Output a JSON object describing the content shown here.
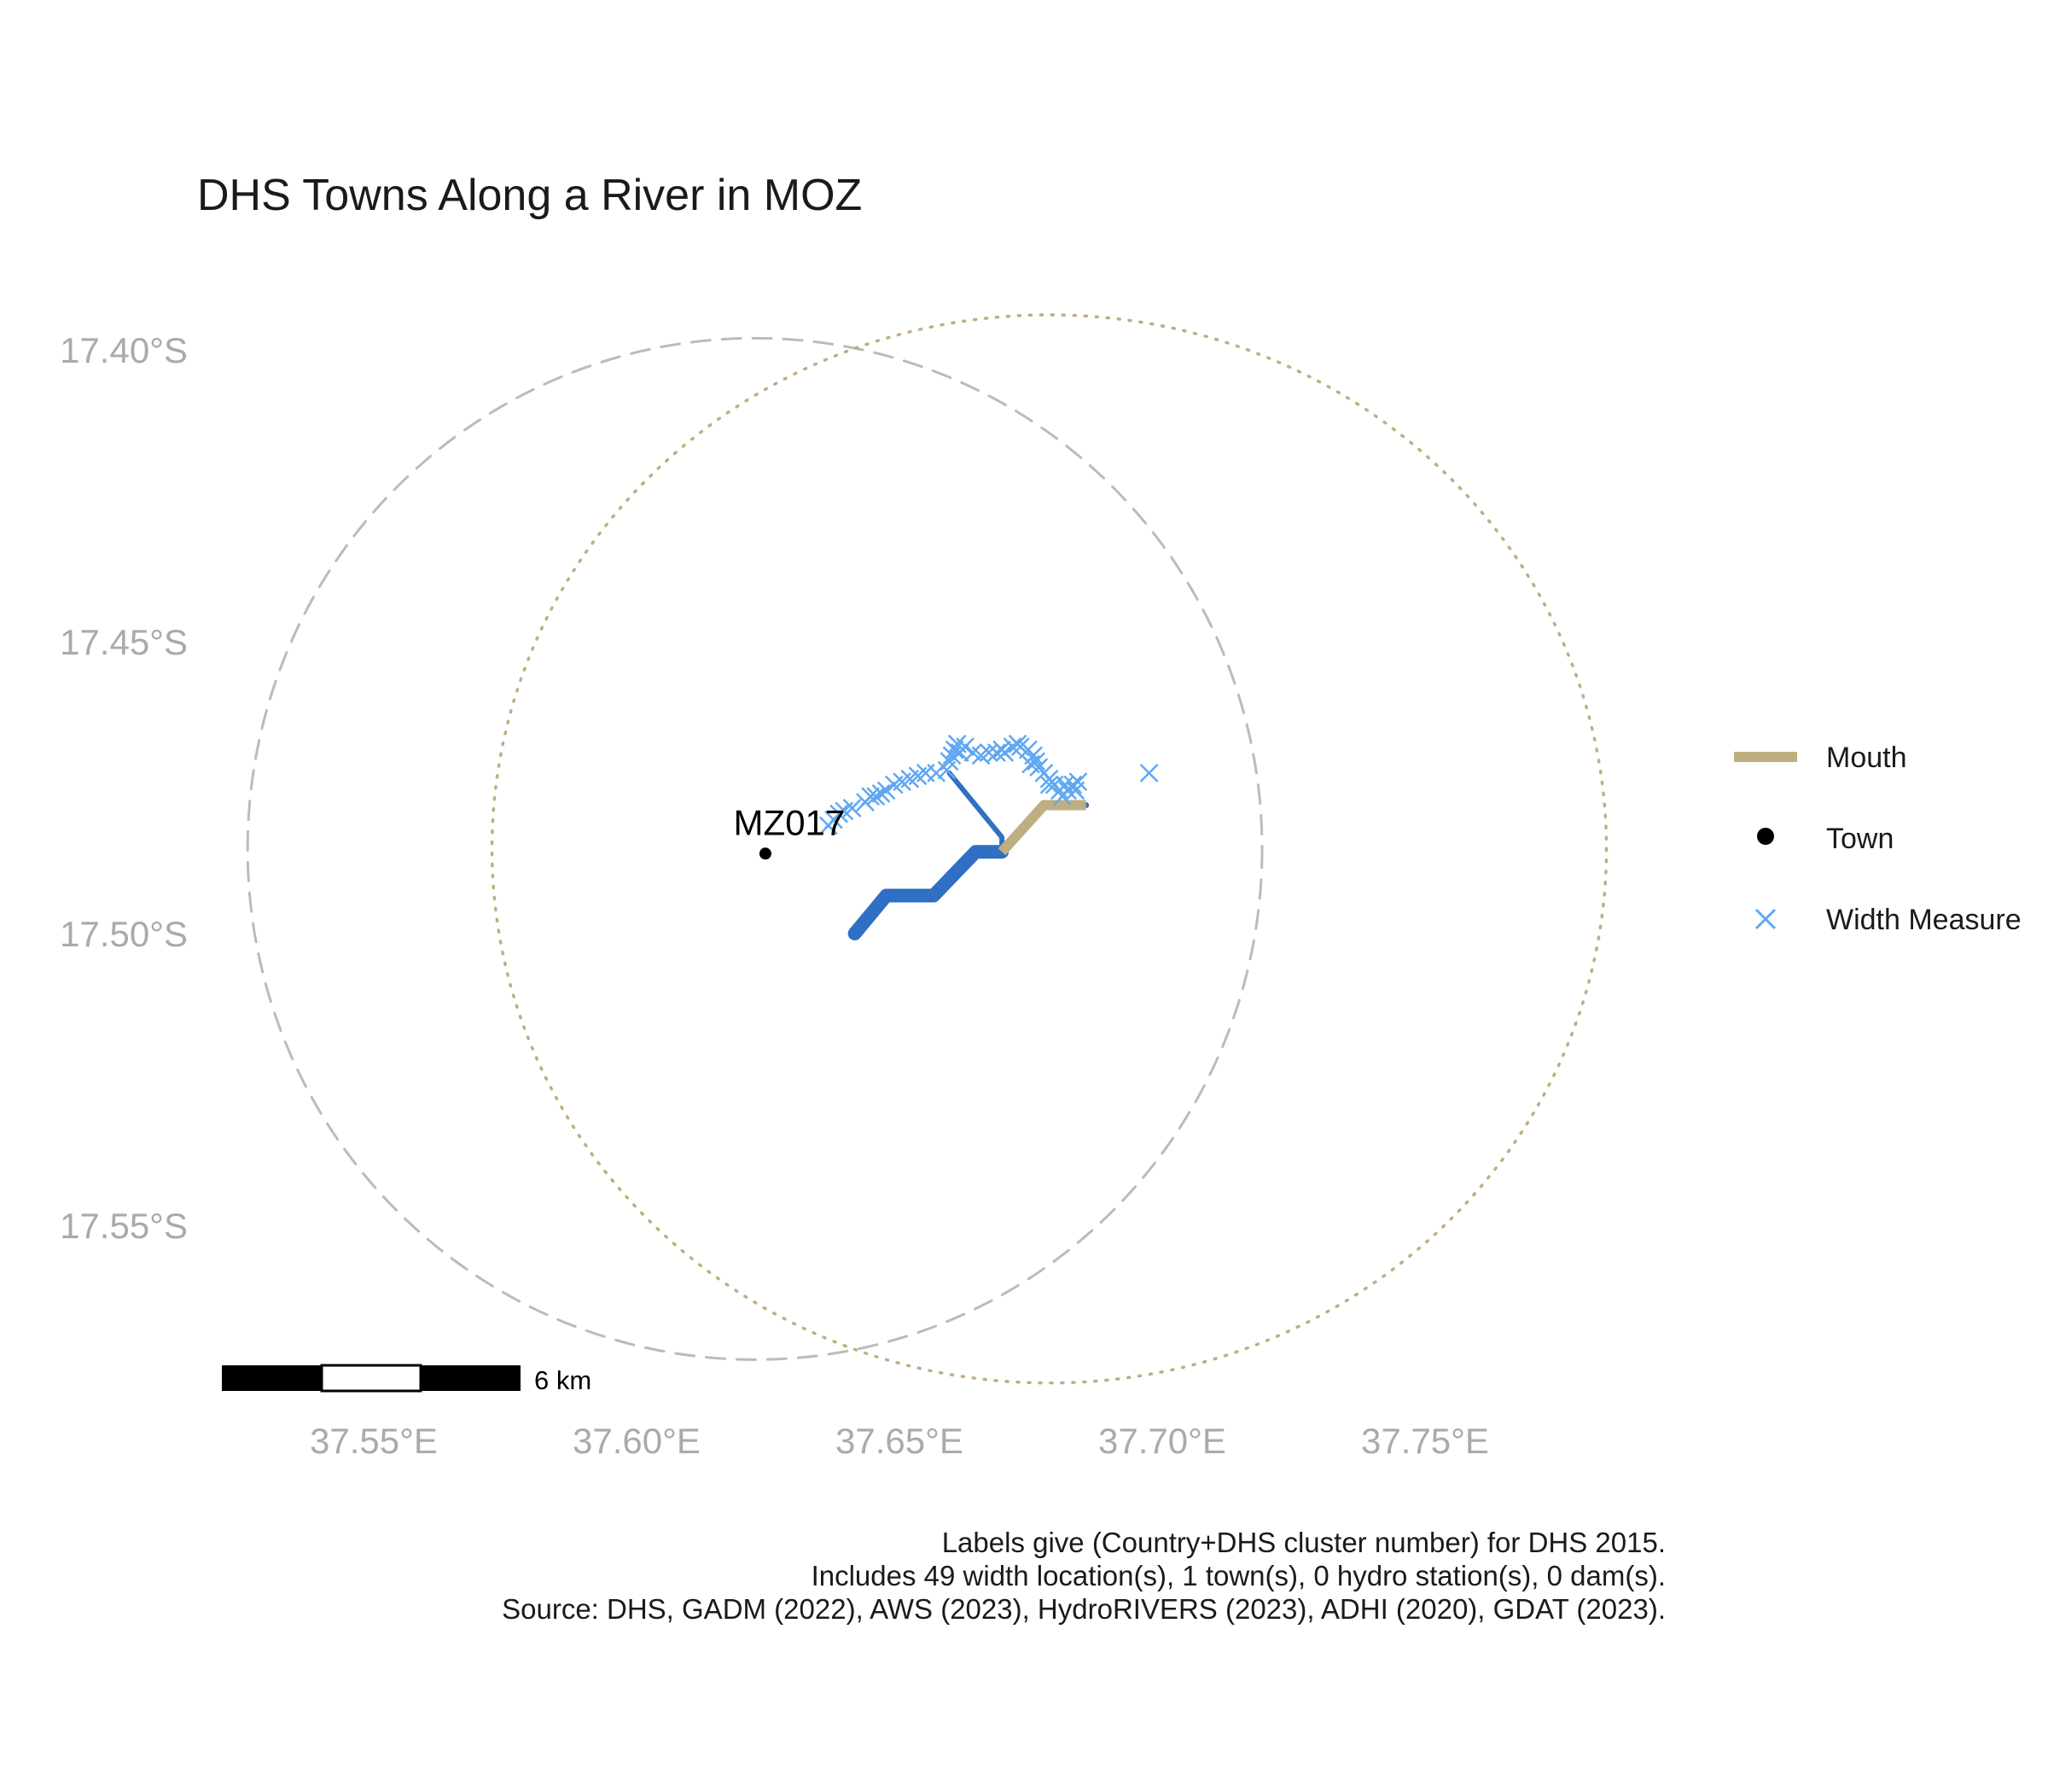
{
  "title": "DHS Towns Along a River in MOZ",
  "map": {
    "crs": "lon/lat",
    "lon_ticks": [
      37.55,
      37.6,
      37.65,
      37.7,
      37.75
    ],
    "lon_tick_labels": [
      "37.55°E",
      "37.60°E",
      "37.65°E",
      "37.70°E",
      "37.75°E"
    ],
    "lat_ticks": [
      -17.4,
      -17.45,
      -17.5,
      -17.55
    ],
    "lat_tick_labels": [
      "17.40°S",
      "17.45°S",
      "17.50°S",
      "17.55°S"
    ],
    "lon_range": [
      37.5175,
      37.835
    ],
    "lat_range": [
      -17.58,
      -17.38
    ],
    "colors": {
      "river": "#2f6fc4",
      "mouth": "#bfae82",
      "width_measure": "#5ea8f2",
      "town": "#000000",
      "buffer_dashed": "#bbbbbb",
      "buffer_dotted": "#bfae82"
    },
    "buffers": [
      {
        "style": "dashed",
        "center": [
          37.6225,
          -17.4855
        ],
        "radius_deg_lon": 0.0965,
        "radius_deg_lat": 0.0875
      },
      {
        "style": "dotted",
        "center": [
          37.6785,
          -17.4855
        ],
        "radius_deg_lon": 0.106,
        "radius_deg_lat": 0.0915
      }
    ],
    "river_segments": [
      {
        "width_class": "thick",
        "points": [
          [
            37.6415,
            -17.5
          ],
          [
            37.6475,
            -17.4935
          ],
          [
            37.6565,
            -17.4935
          ],
          [
            37.6645,
            -17.486
          ],
          [
            37.6695,
            -17.486
          ]
        ]
      },
      {
        "width_class": "thin",
        "points": [
          [
            37.6595,
            -17.4725
          ],
          [
            37.6695,
            -17.4835
          ],
          [
            37.6695,
            -17.486
          ]
        ]
      },
      {
        "width_class": "medium",
        "points": [
          [
            37.6695,
            -17.486
          ],
          [
            37.6775,
            -17.478
          ],
          [
            37.6855,
            -17.478
          ]
        ]
      }
    ],
    "mouth": {
      "points": [
        [
          37.6695,
          -17.486
        ],
        [
          37.6775,
          -17.478
        ],
        [
          37.6855,
          -17.478
        ]
      ]
    },
    "towns": [
      {
        "id": "MZ017",
        "lon": 37.6245,
        "lat": -17.4863
      }
    ],
    "width_measures": [
      [
        37.6375,
        -17.4805
      ],
      [
        37.6395,
        -17.479
      ],
      [
        37.641,
        -17.4785
      ],
      [
        37.6435,
        -17.4775
      ],
      [
        37.6455,
        -17.4765
      ],
      [
        37.6475,
        -17.4755
      ],
      [
        37.649,
        -17.4745
      ],
      [
        37.6505,
        -17.474
      ],
      [
        37.652,
        -17.4735
      ],
      [
        37.6535,
        -17.473
      ],
      [
        37.655,
        -17.4725
      ],
      [
        37.657,
        -17.4725
      ],
      [
        37.659,
        -17.472
      ],
      [
        37.6595,
        -17.4705
      ],
      [
        37.66,
        -17.4695
      ],
      [
        37.6605,
        -17.4685
      ],
      [
        37.661,
        -17.4675
      ],
      [
        37.6625,
        -17.468
      ],
      [
        37.664,
        -17.469
      ],
      [
        37.6655,
        -17.4695
      ],
      [
        37.667,
        -17.469
      ],
      [
        37.6685,
        -17.469
      ],
      [
        37.67,
        -17.469
      ],
      [
        37.6715,
        -17.468
      ],
      [
        37.673,
        -17.468
      ],
      [
        37.6745,
        -17.4685
      ],
      [
        37.6755,
        -17.4695
      ],
      [
        37.676,
        -17.4705
      ],
      [
        37.6765,
        -17.4715
      ],
      [
        37.6775,
        -17.4725
      ],
      [
        37.6785,
        -17.4735
      ],
      [
        37.6795,
        -17.4745
      ],
      [
        37.6805,
        -17.4755
      ],
      [
        37.681,
        -17.4765
      ],
      [
        37.682,
        -17.4755
      ],
      [
        37.683,
        -17.4745
      ],
      [
        37.684,
        -17.474
      ],
      [
        37.6975,
        -17.4725
      ],
      [
        37.6365,
        -17.4815
      ],
      [
        37.6385,
        -17.4795
      ],
      [
        37.6445,
        -17.4765
      ],
      [
        37.6465,
        -17.476
      ],
      [
        37.6615,
        -17.469
      ],
      [
        37.6695,
        -17.4685
      ],
      [
        37.6725,
        -17.4675
      ],
      [
        37.675,
        -17.471
      ],
      [
        37.6785,
        -17.4745
      ],
      [
        37.6815,
        -17.4745
      ],
      [
        37.6835,
        -17.4755
      ]
    ],
    "scale_bar": {
      "label": "6 km",
      "segments": 3
    }
  },
  "legend": [
    {
      "key": "Mouth",
      "label": "Mouth"
    },
    {
      "key": "Town",
      "label": "Town"
    },
    {
      "key": "Width Measure",
      "label": "Width Measure"
    }
  ],
  "caption": [
    "Labels give (Country+DHS cluster number) for DHS 2015.",
    "Includes 49 width location(s), 1 town(s), 0 hydro station(s), 0 dam(s).",
    "Source: DHS, GADM (2022), AWS (2023), HydroRIVERS (2023), ADHI (2020), GDAT (2023)."
  ]
}
